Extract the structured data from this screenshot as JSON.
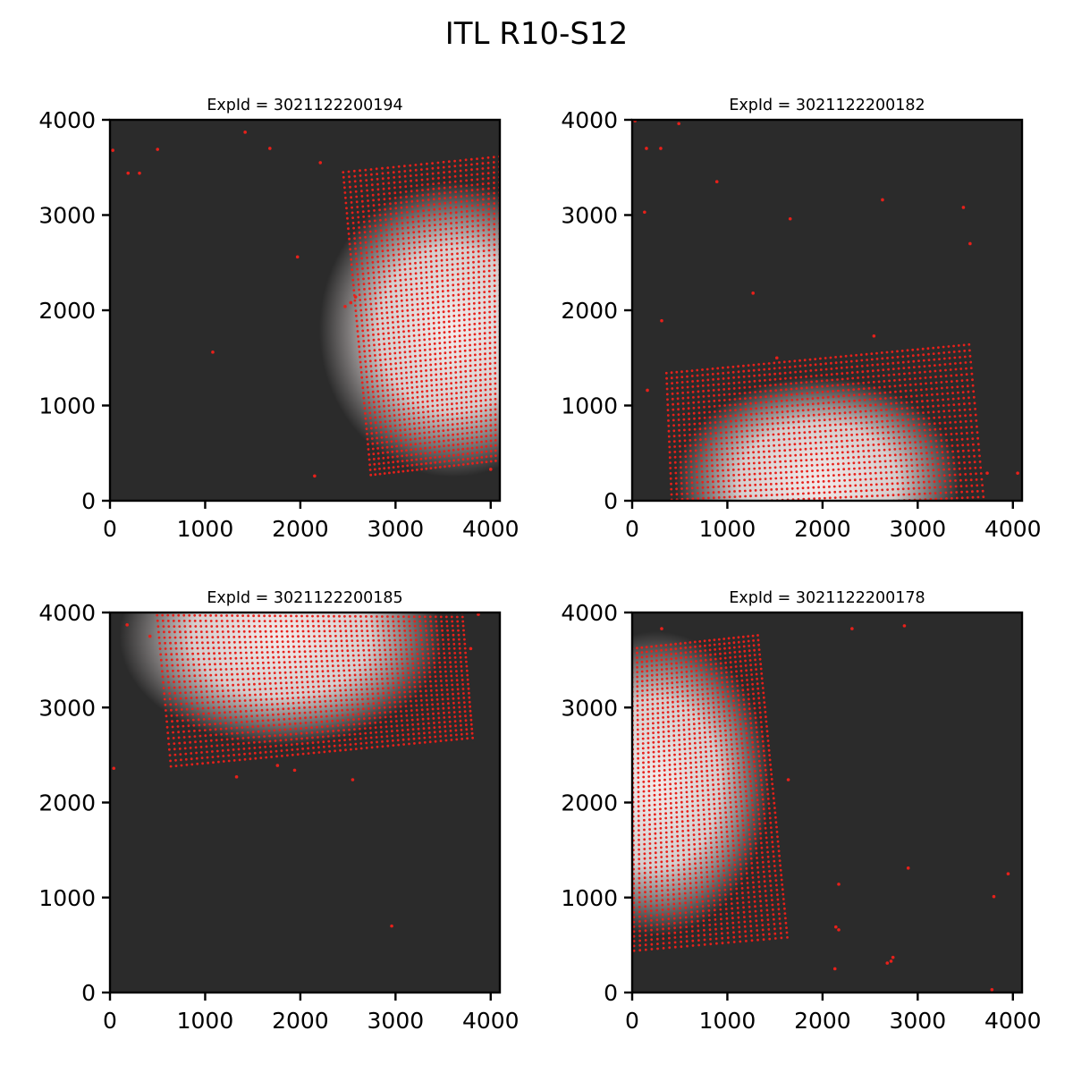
{
  "figure": {
    "title": "ITL R10-S12"
  },
  "colors": {
    "background": "#2b2b2b",
    "spot_marker": "#e8201a",
    "spot_glow": "#f3eaea",
    "axes": "#000000"
  },
  "chart_data": [
    {
      "type": "scatter",
      "title": "ExpId = 3021122200194",
      "xlim": [
        0,
        4096
      ],
      "ylim": [
        0,
        4000
      ],
      "xticks": [
        "0",
        "1000",
        "2000",
        "3000",
        "4000"
      ],
      "yticks": [
        "0",
        "1000",
        "2000",
        "3000",
        "4000"
      ],
      "grid": {
        "corners": [
          [
            2450,
            3450
          ],
          [
            4150,
            3620
          ],
          [
            4150,
            430
          ],
          [
            2740,
            270
          ]
        ],
        "cols": 30,
        "rows": 60
      },
      "glow": {
        "cx": 3600,
        "cy": 1800,
        "rx": 1400,
        "ry": 1550
      },
      "stray_points": [
        [
          30,
          3680
        ],
        [
          190,
          3440
        ],
        [
          310,
          3440
        ],
        [
          500,
          3690
        ],
        [
          1420,
          3870
        ],
        [
          1680,
          3700
        ],
        [
          2210,
          3550
        ],
        [
          1970,
          2560
        ],
        [
          1080,
          1560
        ],
        [
          2150,
          260
        ],
        [
          2470,
          2040
        ],
        [
          2530,
          2080
        ],
        [
          2580,
          2140
        ],
        [
          4000,
          330
        ]
      ]
    },
    {
      "type": "scatter",
      "title": "ExpId = 3021122200182",
      "xlim": [
        0,
        4096
      ],
      "ylim": [
        0,
        4000
      ],
      "xticks": [
        "0",
        "1000",
        "2000",
        "3000",
        "4000"
      ],
      "yticks": [
        "0",
        "1000",
        "2000",
        "3000",
        "4000"
      ],
      "grid": {
        "corners": [
          [
            360,
            1340
          ],
          [
            3540,
            1640
          ],
          [
            3690,
            40
          ],
          [
            420,
            -100
          ]
        ],
        "cols": 60,
        "rows": 27
      },
      "glow": {
        "cx": 1950,
        "cy": 200,
        "rx": 1500,
        "ry": 1100
      },
      "stray_points": [
        [
          30,
          3990
        ],
        [
          150,
          3700
        ],
        [
          300,
          3700
        ],
        [
          490,
          3960
        ],
        [
          890,
          3350
        ],
        [
          130,
          3030
        ],
        [
          2630,
          3160
        ],
        [
          1660,
          2960
        ],
        [
          3480,
          3080
        ],
        [
          3550,
          2700
        ],
        [
          1270,
          2180
        ],
        [
          310,
          1890
        ],
        [
          2540,
          1730
        ],
        [
          1520,
          1500
        ],
        [
          160,
          1160
        ],
        [
          4050,
          290
        ],
        [
          3730,
          290
        ]
      ]
    },
    {
      "type": "scatter",
      "title": "ExpId = 3021122200185",
      "xlim": [
        0,
        4096
      ],
      "ylim": [
        0,
        4000
      ],
      "xticks": [
        "0",
        "1000",
        "2000",
        "3000",
        "4000"
      ],
      "yticks": [
        "0",
        "1000",
        "2000",
        "3000",
        "4000"
      ],
      "grid": {
        "corners": [
          [
            490,
            4030
          ],
          [
            3700,
            4000
          ],
          [
            3810,
            2680
          ],
          [
            640,
            2380
          ]
        ],
        "cols": 58,
        "rows": 29
      },
      "glow": {
        "cx": 1800,
        "cy": 3750,
        "rx": 1700,
        "ry": 1150
      },
      "stray_points": [
        [
          180,
          3870
        ],
        [
          420,
          3750
        ],
        [
          3870,
          3980
        ],
        [
          3790,
          3620
        ],
        [
          40,
          2360
        ],
        [
          1330,
          2270
        ],
        [
          1760,
          2390
        ],
        [
          1940,
          2340
        ],
        [
          2550,
          2240
        ],
        [
          2960,
          700
        ]
      ]
    },
    {
      "type": "scatter",
      "title": "ExpId = 3021122200178",
      "xlim": [
        0,
        4096
      ],
      "ylim": [
        0,
        4000
      ],
      "xticks": [
        "0",
        "1000",
        "2000",
        "3000",
        "4000"
      ],
      "yticks": [
        "0",
        "1000",
        "2000",
        "3000",
        "4000"
      ],
      "grid": {
        "corners": [
          [
            0,
            3620
          ],
          [
            1320,
            3760
          ],
          [
            1630,
            580
          ],
          [
            20,
            440
          ]
        ],
        "cols": 27,
        "rows": 64
      },
      "glow": {
        "cx": 250,
        "cy": 2200,
        "rx": 1200,
        "ry": 1600
      },
      "stray_points": [
        [
          310,
          3830
        ],
        [
          2310,
          3830
        ],
        [
          2860,
          3860
        ],
        [
          1640,
          2240
        ],
        [
          2170,
          1140
        ],
        [
          2900,
          1310
        ],
        [
          3950,
          1250
        ],
        [
          3800,
          1010
        ],
        [
          2140,
          690
        ],
        [
          2170,
          660
        ],
        [
          2720,
          330
        ],
        [
          2740,
          370
        ],
        [
          2680,
          310
        ],
        [
          2130,
          250
        ],
        [
          3780,
          30
        ]
      ]
    }
  ]
}
